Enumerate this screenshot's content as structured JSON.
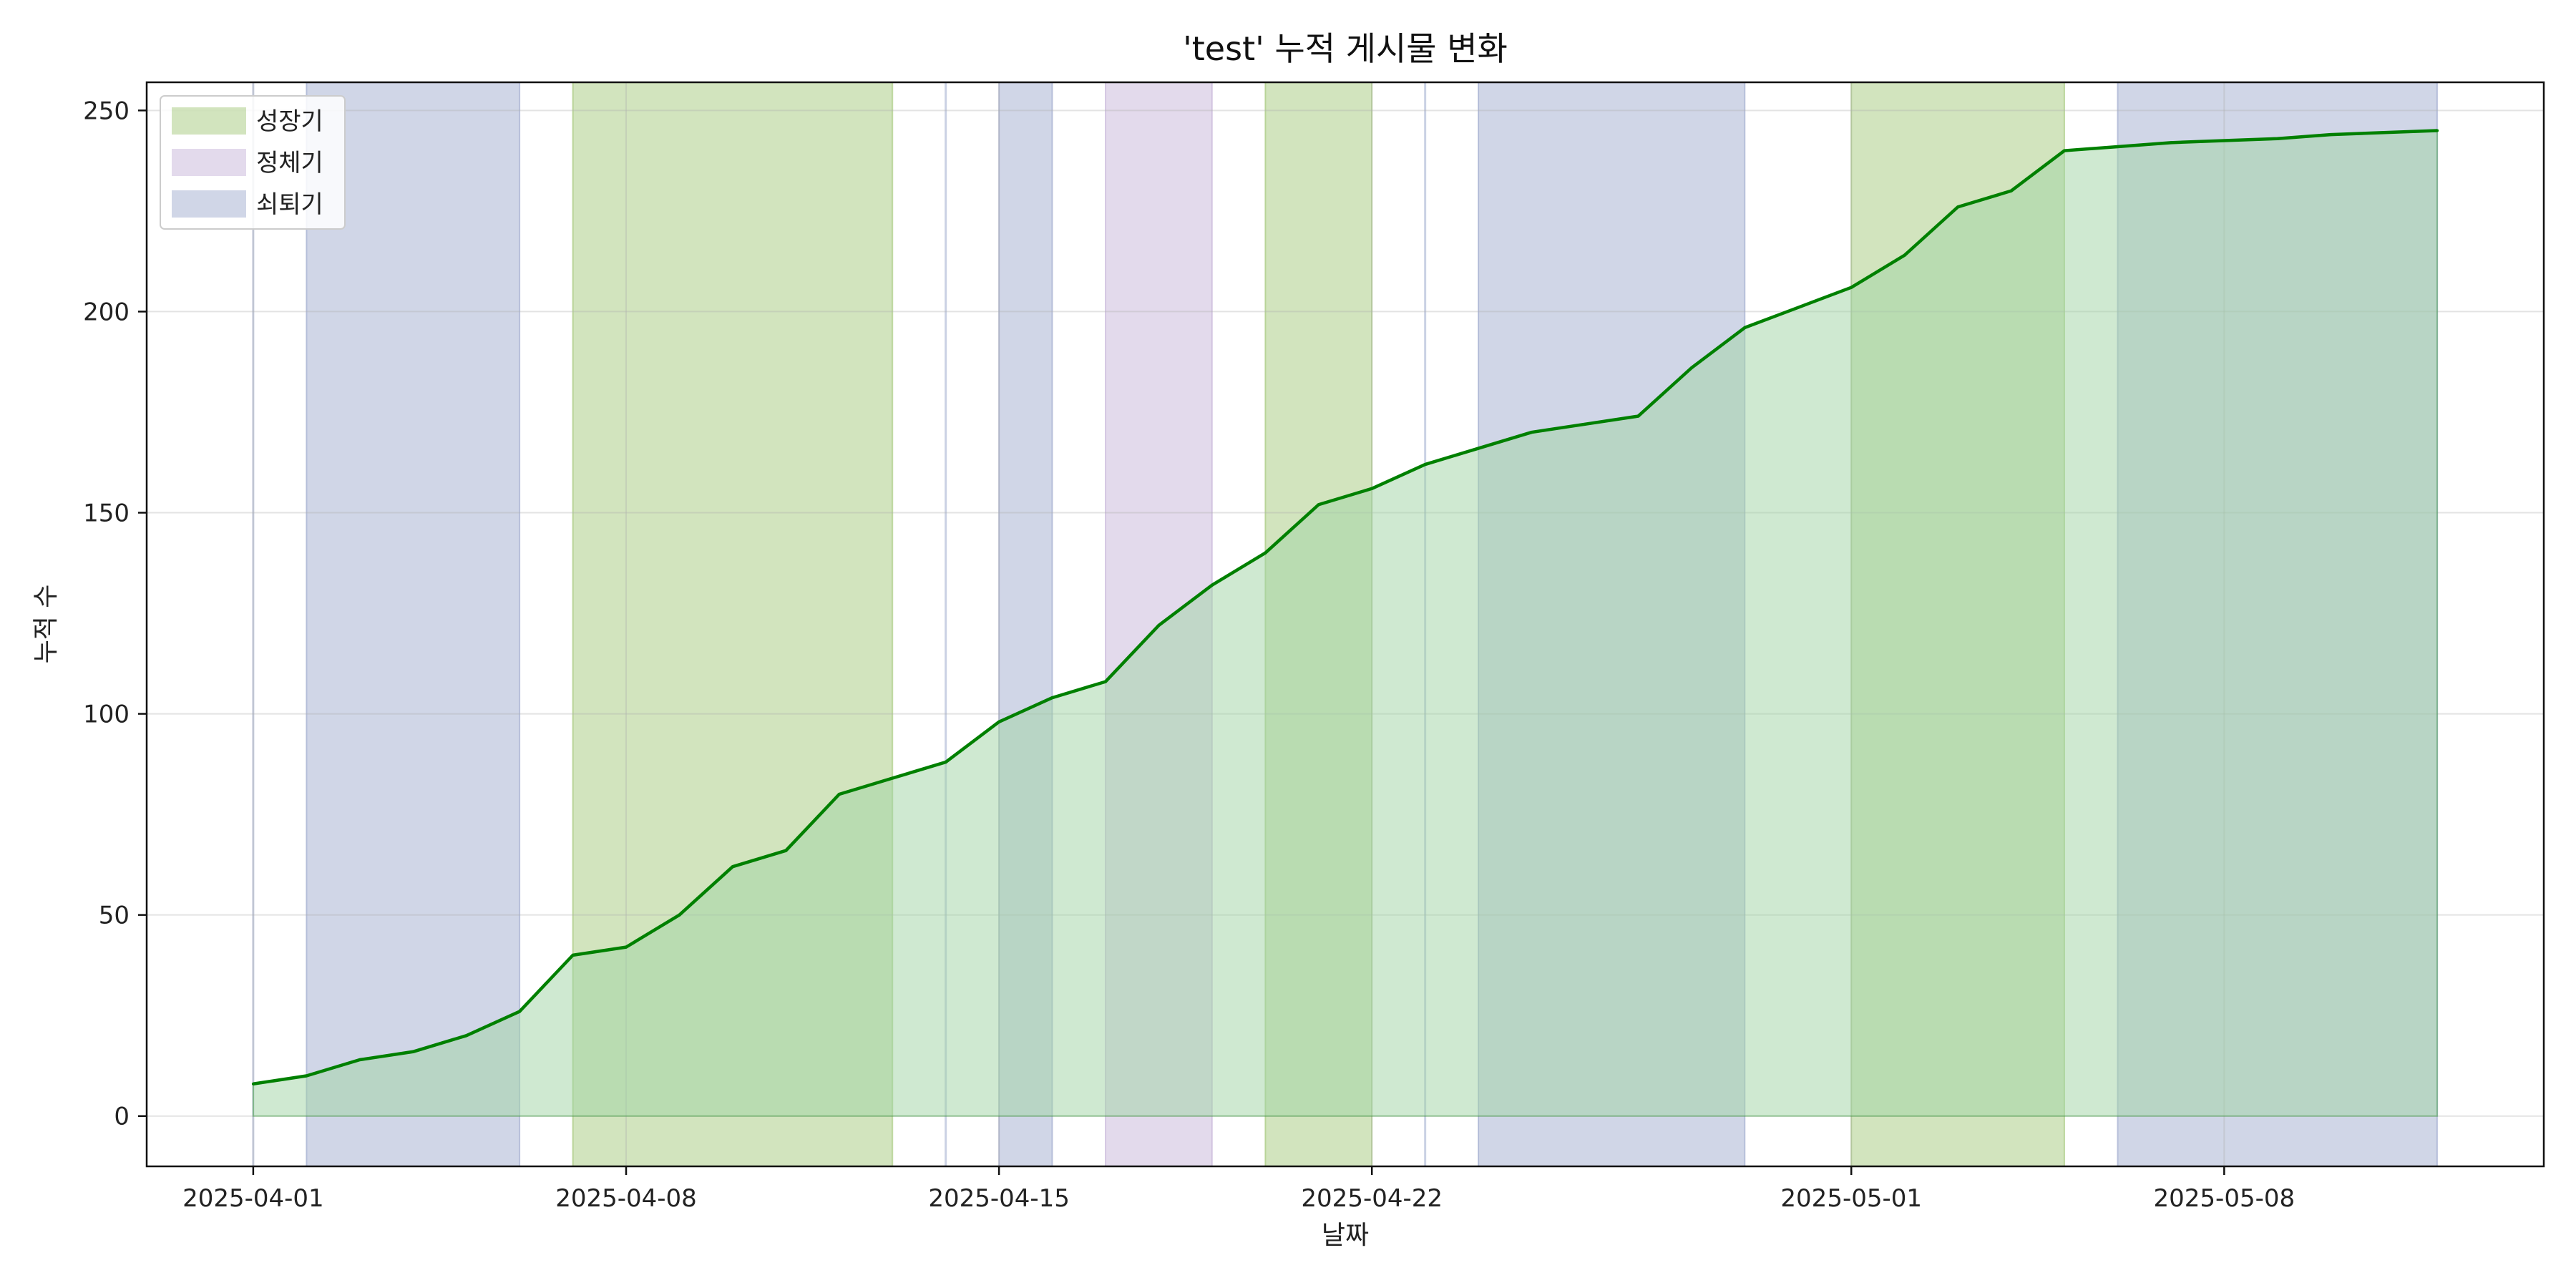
{
  "chart_data": {
    "type": "area",
    "title": "'test' 누적 게시물 변화",
    "xlabel": "날짜",
    "ylabel": "누적 수",
    "x_tick_labels": [
      "2025-04-01",
      "2025-04-08",
      "2025-04-15",
      "2025-04-22",
      "2025-05-01",
      "2025-05-08"
    ],
    "y_tick_labels": [
      "0",
      "50",
      "100",
      "150",
      "200",
      "250"
    ],
    "y_ticks": [
      0,
      50,
      100,
      150,
      200,
      250
    ],
    "xlim": [
      "2025-03-30",
      "2025-05-14"
    ],
    "ylim": [
      -12.5,
      257
    ],
    "grid": true,
    "legend_position": "top-left",
    "line_color": "#008000",
    "fill_color": "#9fd3a3",
    "series": [
      {
        "x": [
          "2025-04-01",
          "2025-04-02",
          "2025-04-03",
          "2025-04-04",
          "2025-04-05",
          "2025-04-06",
          "2025-04-07",
          "2025-04-08",
          "2025-04-09",
          "2025-04-10",
          "2025-04-11",
          "2025-04-12",
          "2025-04-13",
          "2025-04-14",
          "2025-04-15",
          "2025-04-16",
          "2025-04-17",
          "2025-04-18",
          "2025-04-19",
          "2025-04-20",
          "2025-04-21",
          "2025-04-22",
          "2025-04-23",
          "2025-04-24",
          "2025-04-25",
          "2025-04-26",
          "2025-04-27",
          "2025-04-28",
          "2025-04-29",
          "2025-04-30",
          "2025-05-01",
          "2025-05-02",
          "2025-05-03",
          "2025-05-04",
          "2025-05-05",
          "2025-05-06",
          "2025-05-07",
          "2025-05-08",
          "2025-05-09",
          "2025-05-10",
          "2025-05-11",
          "2025-05-12"
        ],
        "values": [
          8,
          10,
          14,
          16,
          20,
          26,
          40,
          42,
          50,
          62,
          66,
          80,
          84,
          88,
          98,
          104,
          108,
          122,
          132,
          140,
          152,
          156,
          162,
          166,
          170,
          172,
          174,
          186,
          196,
          201,
          206,
          214,
          226,
          230,
          240,
          241,
          242,
          242.5,
          243,
          244,
          244.5,
          245
        ]
      }
    ],
    "phases": [
      {
        "label": "성장기",
        "color": "#8fbc5c"
      },
      {
        "label": "정체기",
        "color": "#b9a3cf"
      },
      {
        "label": "쇠퇴기",
        "color": "#8a98c4"
      }
    ],
    "spans": [
      {
        "start": "2025-04-01",
        "end": "2025-04-01",
        "phase": 2
      },
      {
        "start": "2025-04-02",
        "end": "2025-04-06",
        "phase": 2
      },
      {
        "start": "2025-04-07",
        "end": "2025-04-13",
        "phase": 0
      },
      {
        "start": "2025-04-14",
        "end": "2025-04-14",
        "phase": 2
      },
      {
        "start": "2025-04-15",
        "end": "2025-04-16",
        "phase": 2
      },
      {
        "start": "2025-04-17",
        "end": "2025-04-19",
        "phase": 1
      },
      {
        "start": "2025-04-20",
        "end": "2025-04-22",
        "phase": 0
      },
      {
        "start": "2025-04-23",
        "end": "2025-04-23",
        "phase": 2
      },
      {
        "start": "2025-04-24",
        "end": "2025-04-29",
        "phase": 2
      },
      {
        "start": "2025-05-01",
        "end": "2025-05-05",
        "phase": 0
      },
      {
        "start": "2025-05-06",
        "end": "2025-05-12",
        "phase": 2
      }
    ]
  }
}
